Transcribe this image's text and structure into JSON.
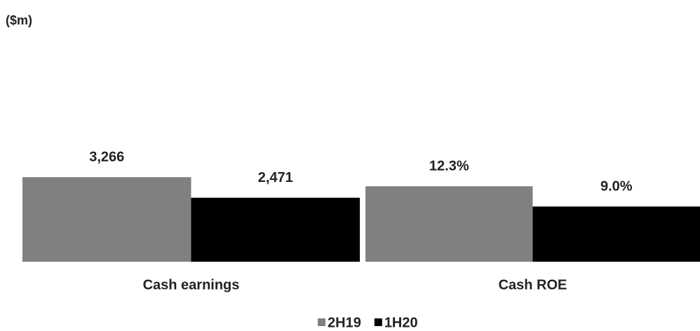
{
  "chart_data": [
    {
      "type": "bar",
      "title": "($m)",
      "categories": [
        "Cash earnings"
      ],
      "series": [
        {
          "name": "2H19",
          "color": "#808080",
          "values": [
            3266
          ],
          "value_labels": [
            "3,266"
          ]
        },
        {
          "name": "1H20",
          "color": "#000000",
          "values": [
            2471
          ],
          "value_labels": [
            "2,471"
          ]
        }
      ],
      "ylim": [
        0,
        9000
      ]
    },
    {
      "type": "bar",
      "categories": [
        "Cash ROE"
      ],
      "series": [
        {
          "color": "#808080",
          "values": [
            12.3
          ],
          "value_labels": [
            "12.3%"
          ]
        },
        {
          "color": "#000000",
          "values": [
            9.0
          ],
          "value_labels": [
            "9.0%"
          ]
        }
      ],
      "ylim": [
        0,
        38
      ]
    }
  ]
}
